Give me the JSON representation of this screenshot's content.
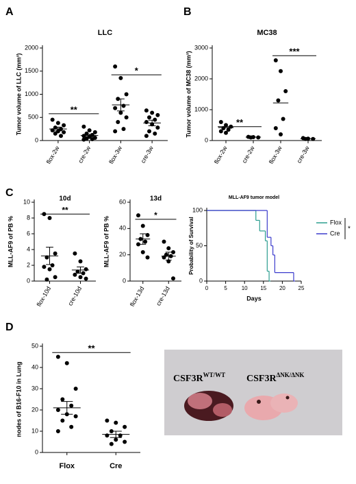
{
  "chart_data": [
    {
      "type": "dotplot",
      "panel": "A",
      "title": "LLC",
      "ylabel": "Tumor volume of LLC (mm³)",
      "categories": [
        "flox-2w",
        "cre-2w",
        "flox-3w",
        "cre-3w"
      ],
      "groups": [
        [
          450,
          380,
          330,
          280,
          250,
          220,
          200,
          180,
          150,
          100
        ],
        [
          300,
          220,
          180,
          150,
          120,
          100,
          80,
          60,
          40,
          30,
          20
        ],
        [
          1600,
          1350,
          1000,
          900,
          750,
          700,
          600,
          500,
          400,
          250,
          200
        ],
        [
          650,
          600,
          550,
          500,
          450,
          400,
          350,
          280,
          200,
          150,
          100
        ]
      ],
      "means": [
        250,
        110,
        770,
        380
      ],
      "sem": [
        40,
        25,
        130,
        60
      ],
      "ylim": [
        0,
        2000
      ],
      "yticks": [
        0,
        500,
        1000,
        1500,
        2000
      ],
      "annotations": [
        {
          "text": "**",
          "from": "flox-2w",
          "to": "cre-2w",
          "y": 580
        },
        {
          "text": "*",
          "from": "flox-3w",
          "to": "cre-3w",
          "y": 1420
        }
      ]
    },
    {
      "type": "dotplot",
      "panel": "B",
      "title": "MC38",
      "ylabel": "Tumor volume of MC38 (mm³)",
      "categories": [
        "flox-2w",
        "cre-2w",
        "flox-3w",
        "cre-3w"
      ],
      "groups": [
        [
          600,
          500,
          450,
          400,
          350,
          300,
          250
        ],
        [
          120,
          110,
          100,
          100
        ],
        [
          2600,
          2250,
          1600,
          1300,
          700,
          400,
          200
        ],
        [
          80,
          60,
          50,
          50
        ]
      ],
      "means": [
        420,
        110,
        1220,
        60
      ],
      "ylim": [
        0,
        3000
      ],
      "yticks": [
        0,
        1000,
        2000,
        3000
      ],
      "annotations": [
        {
          "text": "**",
          "from": "flox-2w",
          "to": "cre-2w",
          "y": 450
        },
        {
          "text": "***",
          "from": "flox-3w",
          "to": "cre-3w",
          "y": 2750
        }
      ]
    },
    {
      "type": "dotplot",
      "panel": "C",
      "title": "10d",
      "ylabel": "MLL-AF9 of PB %",
      "categories": [
        "flox-10d",
        "cre-10d"
      ],
      "groups": [
        [
          8.5,
          8.0,
          3.5,
          3.0,
          2.0,
          1.8,
          1.5,
          0.5,
          0.2
        ],
        [
          3.5,
          2.5,
          1.5,
          1.2,
          1.0,
          0.8,
          0.5,
          0.3
        ]
      ],
      "means": [
        3.2,
        1.4
      ],
      "sem": [
        1.1,
        0.4
      ],
      "ylim": [
        0,
        10
      ],
      "yticks": [
        0,
        2,
        4,
        6,
        8,
        10
      ],
      "annotations": [
        {
          "text": "**",
          "from": "flox-10d",
          "to": "cre-10d",
          "y": 8.5
        }
      ]
    },
    {
      "type": "dotplot",
      "title": "13d",
      "ylabel": "MLL-AF9 of PB %",
      "categories": [
        "flox-13d",
        "cre-13d"
      ],
      "groups": [
        [
          50,
          42,
          35,
          32,
          30,
          28,
          22,
          18
        ],
        [
          30,
          25,
          22,
          20,
          19,
          18,
          15,
          2
        ]
      ],
      "means": [
        32,
        19
      ],
      "sem": [
        4,
        3
      ],
      "ylim": [
        0,
        60
      ],
      "yticks": [
        0,
        20,
        40,
        60
      ],
      "annotations": [
        {
          "text": "*",
          "from": "flox-13d",
          "to": "cre-13d",
          "y": 47
        }
      ]
    },
    {
      "type": "survival",
      "title": "MLL-AF9 tumor model",
      "xlabel": "Days",
      "ylabel": "Probability of Survival",
      "series": [
        {
          "name": "Flox",
          "color": "#2a9d8f",
          "x": [
            0,
            13,
            14,
            15.5,
            16,
            16.5
          ],
          "values": [
            100,
            86,
            71,
            57,
            14,
            0
          ]
        },
        {
          "name": "Cre",
          "color": "#3a3acc",
          "x": [
            0,
            16,
            17,
            17.5,
            18,
            23
          ],
          "values": [
            100,
            62,
            50,
            37,
            12,
            0
          ]
        }
      ],
      "xlim": [
        0,
        25
      ],
      "xticks": [
        0,
        5,
        10,
        15,
        20,
        25
      ],
      "ylim": [
        0,
        100
      ],
      "yticks": [
        0,
        50,
        100
      ],
      "annotation": "*"
    },
    {
      "type": "dotplot",
      "panel": "D",
      "ylabel": "nodes of B16-F10 in Lung",
      "categories": [
        "Flox",
        "Cre"
      ],
      "groups": [
        [
          45,
          42,
          30,
          25,
          22,
          20,
          18,
          17,
          15,
          12,
          10
        ],
        [
          15,
          14,
          12,
          10,
          8,
          8,
          6,
          5,
          4
        ]
      ],
      "means": [
        21,
        8.5
      ],
      "sem": [
        3,
        1.5
      ],
      "ylim": [
        0,
        50
      ],
      "yticks": [
        0,
        10,
        20,
        30,
        40,
        50
      ],
      "annotations": [
        {
          "text": "**",
          "from": "Flox",
          "to": "Cre",
          "y": 47
        }
      ]
    }
  ],
  "photo": {
    "labels": [
      {
        "text": "CSF3R",
        "sup": "WT/WT"
      },
      {
        "text": "CSF3R",
        "sup": "ΔNK/ΔNK"
      }
    ]
  }
}
